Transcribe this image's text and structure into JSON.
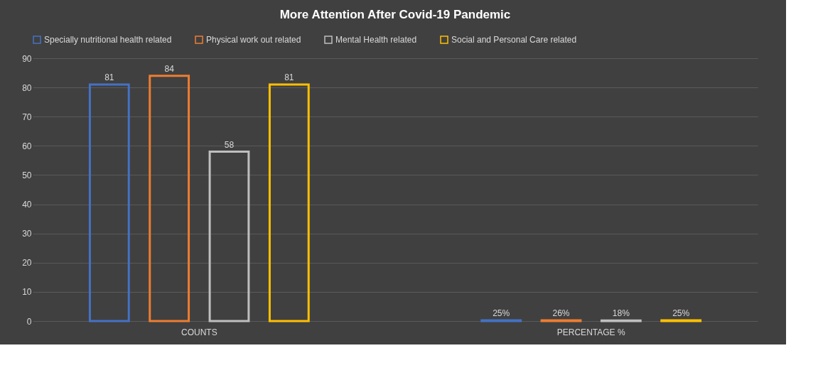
{
  "chart_data": {
    "type": "bar",
    "title": "More Attention After Covid-19 Pandemic",
    "categories": [
      "COUNTS",
      "PERCENTAGE %"
    ],
    "series": [
      {
        "name": "Specially nutritional health related",
        "color": "#4472c4",
        "values": [
          81,
          0.25
        ],
        "value_labels": [
          "81",
          "25%"
        ]
      },
      {
        "name": "Physical work out related",
        "color": "#ed7d31",
        "values": [
          84,
          0.26
        ],
        "value_labels": [
          "84",
          "26%"
        ]
      },
      {
        "name": "Mental Health related",
        "color": "#bfbfbf",
        "values": [
          58,
          0.18
        ],
        "value_labels": [
          "58",
          "18%"
        ]
      },
      {
        "name": "Social and Personal Care related",
        "color": "#ffc000",
        "values": [
          81,
          0.25
        ],
        "value_labels": [
          "81",
          "25%"
        ]
      }
    ],
    "ylim": [
      0,
      90
    ],
    "yticks": [
      0,
      10,
      20,
      30,
      40,
      50,
      60,
      70,
      80,
      90
    ],
    "grid": "y",
    "legend": "top"
  }
}
